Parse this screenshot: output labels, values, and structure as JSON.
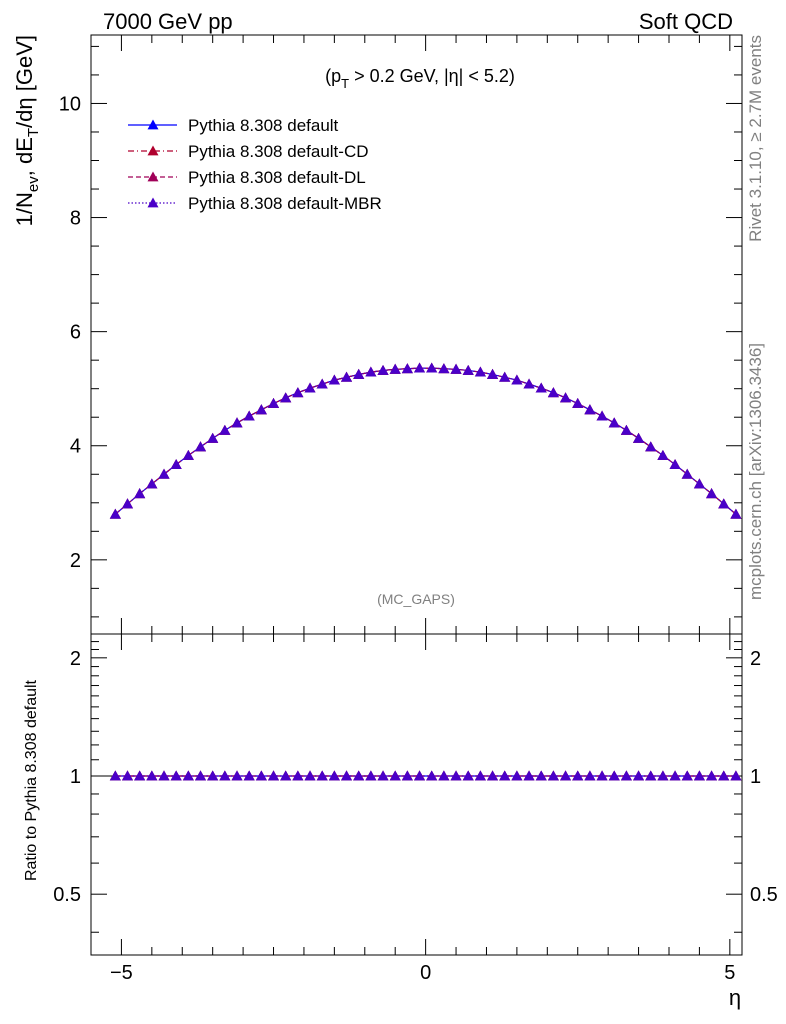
{
  "header": {
    "left": "7000 GeV pp",
    "right": "Soft QCD"
  },
  "side_text": {
    "rivet": "Rivet 3.1.10, ≥ 2.7M events",
    "mcplots": "mcplots.cern.ch [arXiv:1306.3436]"
  },
  "colors": {
    "default": "#0000ff",
    "CD": "#b0002e",
    "DL": "#a00058",
    "MBR": "#4a00c8"
  },
  "chart_data": [
    {
      "type": "line",
      "title": "(p_T > 0.2 GeV, |η| < 5.2)",
      "ylabel": "1/N_ev, dE_T/dη [GeV]",
      "xlim": [
        -5.5,
        5.2
      ],
      "ylim": [
        0.7,
        11.2
      ],
      "yticks": [
        2,
        4,
        6,
        8,
        10
      ],
      "tag": "(MC_GAPS)",
      "legend_position": "top-left",
      "x": [
        -5.1,
        -4.9,
        -4.7,
        -4.5,
        -4.3,
        -4.1,
        -3.9,
        -3.7,
        -3.5,
        -3.3,
        -3.1,
        -2.9,
        -2.7,
        -2.5,
        -2.3,
        -2.1,
        -1.9,
        -1.7,
        -1.5,
        -1.3,
        -1.1,
        -0.9,
        -0.7,
        -0.5,
        -0.3,
        -0.1,
        0.1,
        0.3,
        0.5,
        0.7,
        0.9,
        1.1,
        1.3,
        1.5,
        1.7,
        1.9,
        2.1,
        2.3,
        2.5,
        2.7,
        2.9,
        3.1,
        3.3,
        3.5,
        3.7,
        3.9,
        4.1,
        4.3,
        4.5,
        4.7,
        4.9,
        5.1
      ],
      "series": [
        {
          "name": "Pythia 8.308 default",
          "color": "#0000ff",
          "line": "solid",
          "values": [
            2.8,
            2.98,
            3.16,
            3.33,
            3.5,
            3.67,
            3.83,
            3.98,
            4.13,
            4.27,
            4.4,
            4.52,
            4.63,
            4.74,
            4.84,
            4.93,
            5.01,
            5.08,
            5.15,
            5.2,
            5.25,
            5.29,
            5.32,
            5.34,
            5.35,
            5.36,
            5.36,
            5.35,
            5.34,
            5.32,
            5.29,
            5.25,
            5.2,
            5.15,
            5.08,
            5.01,
            4.93,
            4.84,
            4.74,
            4.63,
            4.52,
            4.4,
            4.27,
            4.13,
            3.98,
            3.83,
            3.67,
            3.5,
            3.33,
            3.16,
            2.98,
            2.8
          ]
        },
        {
          "name": "Pythia 8.308 default-CD",
          "color": "#b0002e",
          "line": "dashdot",
          "values": [
            2.8,
            2.98,
            3.16,
            3.33,
            3.5,
            3.67,
            3.83,
            3.98,
            4.13,
            4.27,
            4.4,
            4.52,
            4.63,
            4.74,
            4.84,
            4.93,
            5.01,
            5.08,
            5.15,
            5.2,
            5.25,
            5.29,
            5.32,
            5.34,
            5.35,
            5.36,
            5.36,
            5.35,
            5.34,
            5.32,
            5.29,
            5.25,
            5.2,
            5.15,
            5.08,
            5.01,
            4.93,
            4.84,
            4.74,
            4.63,
            4.52,
            4.4,
            4.27,
            4.13,
            3.98,
            3.83,
            3.67,
            3.5,
            3.33,
            3.16,
            2.98,
            2.8
          ]
        },
        {
          "name": "Pythia 8.308 default-DL",
          "color": "#a00058",
          "line": "dashed",
          "values": [
            2.8,
            2.98,
            3.16,
            3.33,
            3.5,
            3.67,
            3.83,
            3.98,
            4.13,
            4.27,
            4.4,
            4.52,
            4.63,
            4.74,
            4.84,
            4.93,
            5.01,
            5.08,
            5.15,
            5.2,
            5.25,
            5.29,
            5.32,
            5.34,
            5.35,
            5.36,
            5.36,
            5.35,
            5.34,
            5.32,
            5.29,
            5.25,
            5.2,
            5.15,
            5.08,
            5.01,
            4.93,
            4.84,
            4.74,
            4.63,
            4.52,
            4.4,
            4.27,
            4.13,
            3.98,
            3.83,
            3.67,
            3.5,
            3.33,
            3.16,
            2.98,
            2.8
          ]
        },
        {
          "name": "Pythia 8.308 default-MBR",
          "color": "#4a00c8",
          "line": "dotted",
          "values": [
            2.8,
            2.98,
            3.16,
            3.33,
            3.5,
            3.67,
            3.83,
            3.98,
            4.13,
            4.27,
            4.4,
            4.52,
            4.63,
            4.74,
            4.84,
            4.93,
            5.01,
            5.08,
            5.15,
            5.2,
            5.25,
            5.29,
            5.32,
            5.34,
            5.35,
            5.36,
            5.36,
            5.35,
            5.34,
            5.32,
            5.29,
            5.25,
            5.2,
            5.15,
            5.08,
            5.01,
            4.93,
            4.84,
            4.74,
            4.63,
            4.52,
            4.4,
            4.27,
            4.13,
            3.98,
            3.83,
            3.67,
            3.5,
            3.33,
            3.16,
            2.98,
            2.8
          ]
        }
      ]
    },
    {
      "type": "line",
      "ylabel": "Ratio to Pythia 8.308 default",
      "xlabel": "η",
      "xlim": [
        -5.5,
        5.2
      ],
      "xticks": [
        -5,
        0,
        5
      ],
      "ylim": [
        0.35,
        2.3
      ],
      "yscale": "log",
      "yticks": [
        0.5,
        1,
        2
      ],
      "ratio_values": [
        1,
        1,
        1,
        1
      ]
    }
  ]
}
